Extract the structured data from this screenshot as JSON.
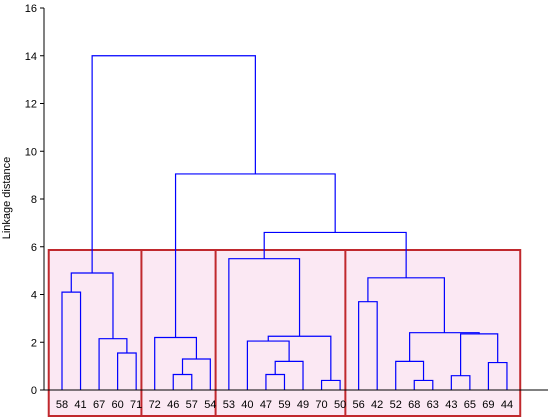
{
  "chart_data": {
    "type": "dendrogram",
    "title": "",
    "xlabel": "",
    "ylabel": "Linkage distance",
    "ylim": [
      0,
      16
    ],
    "yticks": [
      0,
      2,
      4,
      6,
      8,
      10,
      12,
      14,
      16
    ],
    "grid": false,
    "leaves": [
      "58",
      "41",
      "67",
      "60",
      "71",
      "72",
      "46",
      "57",
      "54",
      "53",
      "40",
      "47",
      "59",
      "49",
      "70",
      "50",
      "56",
      "42",
      "52",
      "68",
      "63",
      "43",
      "65",
      "69",
      "44"
    ],
    "merges": [
      {
        "left": "L3",
        "right": "L4",
        "height": 1.55
      },
      {
        "left": "L2",
        "right": "N0",
        "height": 2.15
      },
      {
        "left": "L0",
        "right": "L1",
        "height": 4.1
      },
      {
        "left": "N2",
        "right": "N1",
        "height": 4.9
      },
      {
        "left": "L6",
        "right": "L7",
        "height": 0.65
      },
      {
        "left": "N4",
        "right": "L8",
        "height": 1.3
      },
      {
        "left": "L5",
        "right": "N5",
        "height": 2.2
      },
      {
        "left": "L11",
        "right": "L12",
        "height": 0.65
      },
      {
        "left": "N7",
        "right": "L13",
        "height": 1.2
      },
      {
        "left": "L10",
        "right": "N8",
        "height": 2.05
      },
      {
        "left": "L14",
        "right": "L15",
        "height": 0.4
      },
      {
        "left": "N9",
        "right": "N10",
        "height": 2.25
      },
      {
        "left": "L9",
        "right": "N11",
        "height": 5.5
      },
      {
        "left": "L19",
        "right": "L20",
        "height": 0.4
      },
      {
        "left": "L18",
        "right": "N13",
        "height": 1.2
      },
      {
        "left": "L21",
        "right": "L22",
        "height": 0.6
      },
      {
        "left": "L23",
        "right": "L24",
        "height": 1.15
      },
      {
        "left": "N15",
        "right": "N16",
        "height": 2.35
      },
      {
        "left": "N14",
        "right": "N17",
        "height": 2.4
      },
      {
        "left": "L16",
        "right": "L17",
        "height": 3.7
      },
      {
        "left": "N19",
        "right": "N18",
        "height": 4.7
      },
      {
        "left": "N12",
        "right": "N20",
        "height": 6.6
      },
      {
        "left": "N6",
        "right": "N21",
        "height": 9.05
      },
      {
        "left": "N3",
        "right": "N22",
        "height": 14.0
      }
    ],
    "clusters": [
      {
        "first_leaf": 0,
        "last_leaf": 4
      },
      {
        "first_leaf": 5,
        "last_leaf": 8
      },
      {
        "first_leaf": 9,
        "last_leaf": 15
      },
      {
        "first_leaf": 16,
        "last_leaf": 24
      }
    ],
    "colors": {
      "branch": "#0000ff",
      "cluster_box": "#c0282d",
      "cluster_tint": "#fbe8f3",
      "axis": "#000000"
    }
  }
}
